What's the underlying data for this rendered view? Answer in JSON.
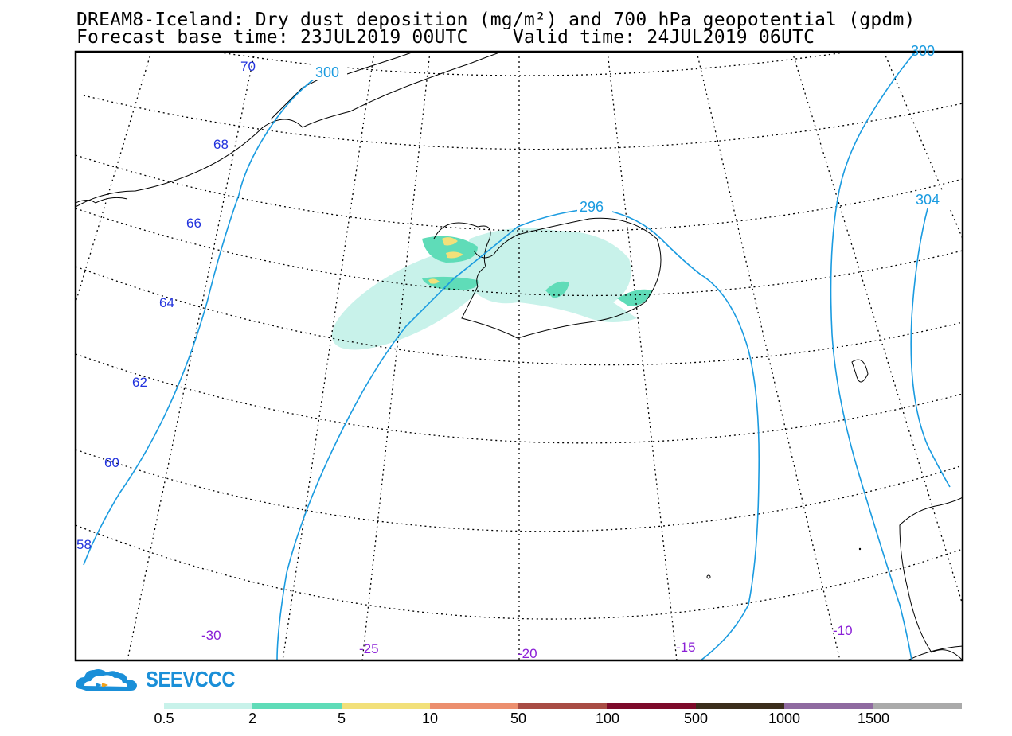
{
  "title": {
    "line1": "DREAM8-Iceland: Dry dust deposition (mg/m²) and 700 hPa geopotential (gpdm)",
    "line2": "Forecast base time: 23JUL2019 00UTC    Valid time: 24JUL2019 06UTC"
  },
  "logo": {
    "text": "SEEVCCC",
    "icon": "cloud-logo-icon"
  },
  "map": {
    "latitude_labels": [
      "70",
      "68",
      "66",
      "64",
      "62",
      "60",
      "58"
    ],
    "longitude_labels": [
      "-30",
      "-25",
      "-20",
      "-15",
      "-10"
    ],
    "contour_labels": [
      "300",
      "296",
      "304",
      "300"
    ],
    "colors": {
      "contour": "#1a9be0",
      "lat_label": "#2233dd",
      "lon_label": "#8a1fd6",
      "dust_low": "#c8f2ea",
      "dust_mid": "#5fdcb8",
      "dust_high": "#f2e07a"
    }
  },
  "legend": {
    "labels": [
      "0.5",
      "2",
      "5",
      "10",
      "50",
      "100",
      "500",
      "1000",
      "1500"
    ],
    "colors": [
      "#c8f2ea",
      "#5fdcb8",
      "#f2e07a",
      "#ec8f6e",
      "#a84c44",
      "#7d0a2a",
      "#3b2d1c",
      "#8f6aa0",
      "#aaaaaa"
    ]
  }
}
